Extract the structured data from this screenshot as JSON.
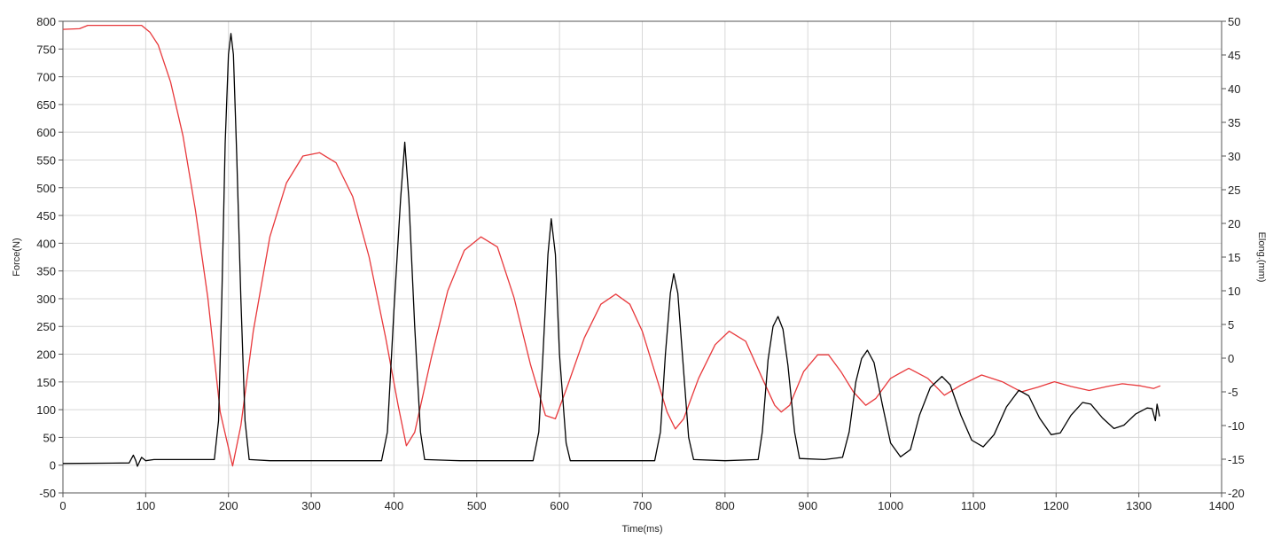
{
  "chart_data": {
    "type": "line",
    "title": "",
    "xlabel": "Time(ms)",
    "ylabel_left": "Force(N)",
    "ylabel_right": "Elong.(mm)",
    "xlim": [
      0,
      1400
    ],
    "ylim_left": [
      -50,
      800
    ],
    "ylim_right": [
      -20,
      50
    ],
    "x_ticks": [
      0,
      100,
      200,
      300,
      400,
      500,
      600,
      700,
      800,
      900,
      1000,
      1100,
      1200,
      1300,
      1400
    ],
    "y_left_ticks": [
      -50,
      0,
      50,
      100,
      150,
      200,
      250,
      300,
      350,
      400,
      450,
      500,
      550,
      600,
      650,
      700,
      750,
      800
    ],
    "y_right_ticks": [
      -20,
      -15,
      -10,
      -5,
      0,
      5,
      10,
      15,
      20,
      25,
      30,
      35,
      40,
      45,
      50
    ],
    "grid": true,
    "colors": {
      "force": "#000000",
      "elong": "#e8383b",
      "grid": "#d8d8d8",
      "axis": "#555555"
    },
    "series": [
      {
        "axis": "left",
        "color": "#000000",
        "points": [
          [
            0,
            3
          ],
          [
            80,
            4
          ],
          [
            85,
            18
          ],
          [
            88,
            8
          ],
          [
            90,
            -2
          ],
          [
            95,
            14
          ],
          [
            100,
            8
          ],
          [
            110,
            10
          ],
          [
            130,
            10
          ],
          [
            150,
            10
          ],
          [
            170,
            10
          ],
          [
            183,
            10
          ],
          [
            188,
            80
          ],
          [
            192,
            300
          ],
          [
            196,
            580
          ],
          [
            200,
            740
          ],
          [
            203,
            778
          ],
          [
            206,
            740
          ],
          [
            210,
            560
          ],
          [
            215,
            300
          ],
          [
            220,
            80
          ],
          [
            225,
            10
          ],
          [
            250,
            8
          ],
          [
            300,
            8
          ],
          [
            350,
            8
          ],
          [
            385,
            8
          ],
          [
            392,
            60
          ],
          [
            400,
            280
          ],
          [
            408,
            480
          ],
          [
            413,
            582
          ],
          [
            418,
            480
          ],
          [
            425,
            250
          ],
          [
            432,
            60
          ],
          [
            437,
            10
          ],
          [
            480,
            8
          ],
          [
            540,
            8
          ],
          [
            568,
            8
          ],
          [
            575,
            60
          ],
          [
            580,
            200
          ],
          [
            586,
            380
          ],
          [
            590,
            444
          ],
          [
            595,
            380
          ],
          [
            600,
            200
          ],
          [
            608,
            40
          ],
          [
            613,
            8
          ],
          [
            660,
            8
          ],
          [
            700,
            8
          ],
          [
            715,
            8
          ],
          [
            722,
            60
          ],
          [
            728,
            200
          ],
          [
            734,
            310
          ],
          [
            738,
            345
          ],
          [
            743,
            310
          ],
          [
            749,
            190
          ],
          [
            756,
            50
          ],
          [
            762,
            10
          ],
          [
            800,
            8
          ],
          [
            840,
            10
          ],
          [
            845,
            60
          ],
          [
            852,
            190
          ],
          [
            858,
            250
          ],
          [
            864,
            268
          ],
          [
            870,
            245
          ],
          [
            876,
            180
          ],
          [
            884,
            60
          ],
          [
            890,
            12
          ],
          [
            920,
            10
          ],
          [
            942,
            14
          ],
          [
            950,
            60
          ],
          [
            958,
            150
          ],
          [
            965,
            192
          ],
          [
            972,
            207
          ],
          [
            980,
            185
          ],
          [
            990,
            110
          ],
          [
            1000,
            40
          ],
          [
            1012,
            15
          ],
          [
            1024,
            28
          ],
          [
            1035,
            90
          ],
          [
            1048,
            140
          ],
          [
            1062,
            160
          ],
          [
            1072,
            145
          ],
          [
            1085,
            90
          ],
          [
            1098,
            45
          ],
          [
            1112,
            33
          ],
          [
            1125,
            55
          ],
          [
            1140,
            105
          ],
          [
            1155,
            135
          ],
          [
            1167,
            125
          ],
          [
            1180,
            85
          ],
          [
            1194,
            55
          ],
          [
            1205,
            58
          ],
          [
            1218,
            90
          ],
          [
            1232,
            113
          ],
          [
            1242,
            110
          ],
          [
            1256,
            85
          ],
          [
            1270,
            66
          ],
          [
            1282,
            72
          ],
          [
            1296,
            92
          ],
          [
            1310,
            103
          ],
          [
            1316,
            102
          ],
          [
            1320,
            80
          ],
          [
            1322,
            110
          ],
          [
            1325,
            88
          ]
        ]
      },
      {
        "axis": "right",
        "color": "#e8383b",
        "points": [
          [
            0,
            48.8
          ],
          [
            20,
            48.9
          ],
          [
            30,
            49.4
          ],
          [
            65,
            49.4
          ],
          [
            95,
            49.4
          ],
          [
            105,
            48.4
          ],
          [
            115,
            46.5
          ],
          [
            130,
            41
          ],
          [
            145,
            33
          ],
          [
            160,
            22
          ],
          [
            175,
            9
          ],
          [
            190,
            -8
          ],
          [
            205,
            -16
          ],
          [
            215,
            -10
          ],
          [
            230,
            4
          ],
          [
            250,
            18
          ],
          [
            270,
            26
          ],
          [
            290,
            30
          ],
          [
            310,
            30.5
          ],
          [
            330,
            29
          ],
          [
            350,
            24
          ],
          [
            370,
            15
          ],
          [
            390,
            3
          ],
          [
            405,
            -7
          ],
          [
            415,
            -13
          ],
          [
            425,
            -11
          ],
          [
            445,
            0
          ],
          [
            465,
            10
          ],
          [
            485,
            16
          ],
          [
            505,
            18
          ],
          [
            525,
            16.5
          ],
          [
            545,
            9
          ],
          [
            565,
            -1
          ],
          [
            583,
            -8.5
          ],
          [
            595,
            -9
          ],
          [
            610,
            -4
          ],
          [
            630,
            3
          ],
          [
            650,
            8
          ],
          [
            668,
            9.5
          ],
          [
            685,
            8
          ],
          [
            700,
            4
          ],
          [
            715,
            -2
          ],
          [
            730,
            -8
          ],
          [
            740,
            -10.5
          ],
          [
            750,
            -9
          ],
          [
            768,
            -3
          ],
          [
            788,
            2
          ],
          [
            805,
            4
          ],
          [
            825,
            2.5
          ],
          [
            845,
            -3
          ],
          [
            860,
            -7
          ],
          [
            868,
            -8
          ],
          [
            878,
            -7
          ],
          [
            895,
            -2
          ],
          [
            912,
            0.5
          ],
          [
            925,
            0.5
          ],
          [
            940,
            -2
          ],
          [
            955,
            -5
          ],
          [
            970,
            -7
          ],
          [
            982,
            -6
          ],
          [
            1000,
            -3
          ],
          [
            1022,
            -1.5
          ],
          [
            1045,
            -3
          ],
          [
            1065,
            -5.5
          ],
          [
            1085,
            -4
          ],
          [
            1110,
            -2.5
          ],
          [
            1135,
            -3.5
          ],
          [
            1158,
            -5
          ],
          [
            1178,
            -4.3
          ],
          [
            1198,
            -3.5
          ],
          [
            1218,
            -4.2
          ],
          [
            1240,
            -4.8
          ],
          [
            1262,
            -4.2
          ],
          [
            1280,
            -3.8
          ],
          [
            1302,
            -4.1
          ],
          [
            1318,
            -4.5
          ],
          [
            1326,
            -4.1
          ]
        ]
      }
    ]
  }
}
